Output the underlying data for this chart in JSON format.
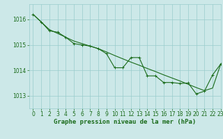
{
  "title": "Graphe pression niveau de la mer (hPa)",
  "bg_color": "#cce8e8",
  "plot_bg_color": "#cce8e8",
  "grid_color": "#99cccc",
  "line_color": "#1a6b1a",
  "xlim": [
    -0.5,
    23
  ],
  "ylim": [
    1012.5,
    1016.6
  ],
  "yticks": [
    1013,
    1014,
    1015,
    1016
  ],
  "xticks": [
    0,
    1,
    2,
    3,
    4,
    5,
    6,
    7,
    8,
    9,
    10,
    11,
    12,
    13,
    14,
    15,
    16,
    17,
    18,
    19,
    20,
    21,
    22,
    23
  ],
  "series1_x": [
    0,
    1,
    2,
    3,
    4,
    5,
    6,
    7,
    8,
    9,
    10,
    11,
    12,
    13,
    14,
    15,
    16,
    17,
    18,
    19,
    20,
    21,
    22,
    23
  ],
  "series1_y": [
    1016.2,
    1015.9,
    1015.6,
    1015.45,
    1015.3,
    1015.15,
    1015.05,
    1014.95,
    1014.85,
    1014.72,
    1014.58,
    1014.45,
    1014.32,
    1014.2,
    1014.07,
    1013.95,
    1013.82,
    1013.7,
    1013.58,
    1013.45,
    1013.32,
    1013.2,
    1013.3,
    1014.25
  ],
  "series2_x": [
    0,
    1,
    2,
    3,
    4,
    5,
    6,
    7,
    8,
    9,
    10,
    11,
    12,
    13,
    14,
    15,
    16,
    17,
    18,
    19,
    20,
    21,
    22,
    23
  ],
  "series2_y": [
    1016.2,
    1015.9,
    1015.55,
    1015.5,
    1015.3,
    1015.05,
    1015.0,
    1014.95,
    1014.85,
    1014.65,
    1014.1,
    1014.1,
    1014.5,
    1014.5,
    1013.78,
    1013.78,
    1013.52,
    1013.52,
    1013.48,
    1013.5,
    1013.07,
    1013.18,
    1013.82,
    1014.25
  ],
  "tick_fontsize": 5.5,
  "title_fontsize": 6.5
}
